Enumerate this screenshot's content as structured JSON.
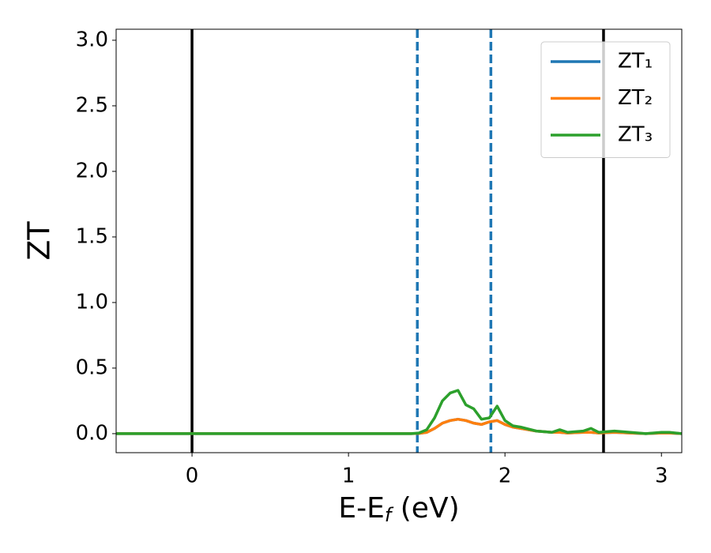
{
  "chart_data": {
    "type": "line",
    "xlabel": [
      "E-E",
      "f",
      " (eV)"
    ],
    "ylabel": "ZT",
    "x": [
      -0.485,
      0,
      0.5,
      1.0,
      1.4,
      1.45,
      1.5,
      1.55,
      1.6,
      1.65,
      1.7,
      1.75,
      1.8,
      1.85,
      1.9,
      1.95,
      2.0,
      2.05,
      2.1,
      2.2,
      2.3,
      2.35,
      2.4,
      2.5,
      2.55,
      2.6,
      2.7,
      2.8,
      2.9,
      3.0,
      3.05,
      3.13
    ],
    "series": [
      {
        "name": "ZT₁",
        "color": "#1f77b4",
        "values": [
          0,
          0,
          0,
          0,
          0,
          0.002,
          0.01,
          0.04,
          0.08,
          0.1,
          0.11,
          0.1,
          0.08,
          0.07,
          0.09,
          0.1,
          0.07,
          0.05,
          0.04,
          0.02,
          0.01,
          0.01,
          0.005,
          0.01,
          0.01,
          0.005,
          0.01,
          0.005,
          0,
          0.005,
          0.005,
          0
        ]
      },
      {
        "name": "ZT₂",
        "color": "#ff7f0e",
        "values": [
          0,
          0,
          0,
          0,
          0,
          0.002,
          0.01,
          0.04,
          0.08,
          0.1,
          0.11,
          0.1,
          0.08,
          0.07,
          0.09,
          0.1,
          0.07,
          0.05,
          0.04,
          0.02,
          0.01,
          0.01,
          0.005,
          0.01,
          0.01,
          0.005,
          0.01,
          0.005,
          0,
          0.005,
          0.005,
          0
        ]
      },
      {
        "name": "ZT₃",
        "color": "#2ca02c",
        "values": [
          0,
          0,
          0,
          0,
          0,
          0.005,
          0.03,
          0.12,
          0.25,
          0.31,
          0.33,
          0.22,
          0.19,
          0.11,
          0.12,
          0.21,
          0.1,
          0.06,
          0.05,
          0.02,
          0.01,
          0.03,
          0.01,
          0.02,
          0.04,
          0.01,
          0.02,
          0.01,
          0,
          0.01,
          0.01,
          0
        ]
      }
    ],
    "vlines": [
      {
        "x": 0,
        "color": "#000000",
        "style": "solid"
      },
      {
        "x": 2.63,
        "color": "#000000",
        "style": "solid"
      },
      {
        "x": 1.44,
        "color": "#1f77b4",
        "style": "dashed"
      },
      {
        "x": 1.91,
        "color": "#1f77b4",
        "style": "dashed"
      }
    ],
    "xlim": [
      -0.485,
      3.13
    ],
    "ylim": [
      -0.145,
      3.084
    ],
    "xticks": [
      0,
      1,
      2,
      3
    ],
    "yticks": [
      {
        "value": 0,
        "label": "0.0"
      },
      {
        "value": 0.5,
        "label": "0.5"
      },
      {
        "value": 1,
        "label": "1.0"
      },
      {
        "value": 1.5,
        "label": "1.5"
      },
      {
        "value": 2,
        "label": "2.0"
      },
      {
        "value": 2.5,
        "label": "2.5"
      },
      {
        "value": 3,
        "label": "3.0"
      }
    ],
    "legend": "upper right",
    "grid": false
  }
}
